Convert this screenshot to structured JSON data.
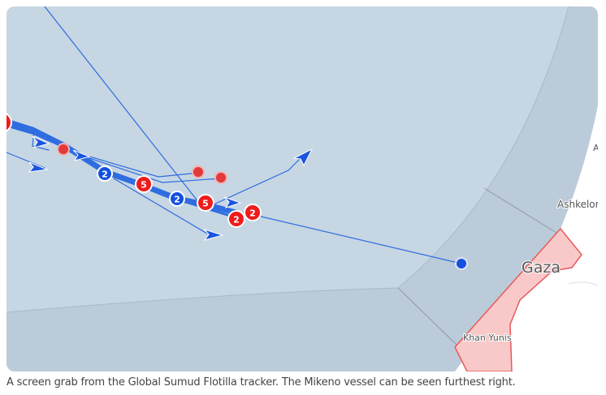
{
  "map": {
    "colors": {
      "sea": "#c6d6e3",
      "zone": "#bccbd9",
      "land": "#ffffff",
      "gaza_fill": "#f9c9c9",
      "gaza_stroke": "#e85a5a",
      "track": "#2f6de0",
      "blue_marker": "#1550e0",
      "red_marker": "#ee1c1c",
      "red_dot": "#e03a3a"
    },
    "places": {
      "gaza": "Gaza",
      "ashkelon": "Ashkelon",
      "khan_yunis": "Khan Yunis",
      "cut_label": "A"
    },
    "clusters": [
      {
        "count": "2",
        "color": "blue"
      },
      {
        "count": "5",
        "color": "red"
      },
      {
        "count": "2",
        "color": "blue"
      },
      {
        "count": "5",
        "color": "red"
      },
      {
        "count": "2",
        "color": "red"
      },
      {
        "count": "2",
        "color": "red"
      }
    ]
  },
  "caption": "A screen grab from the Global Sumud Flotilla tracker. The Mikeno vessel can be seen furthest right."
}
